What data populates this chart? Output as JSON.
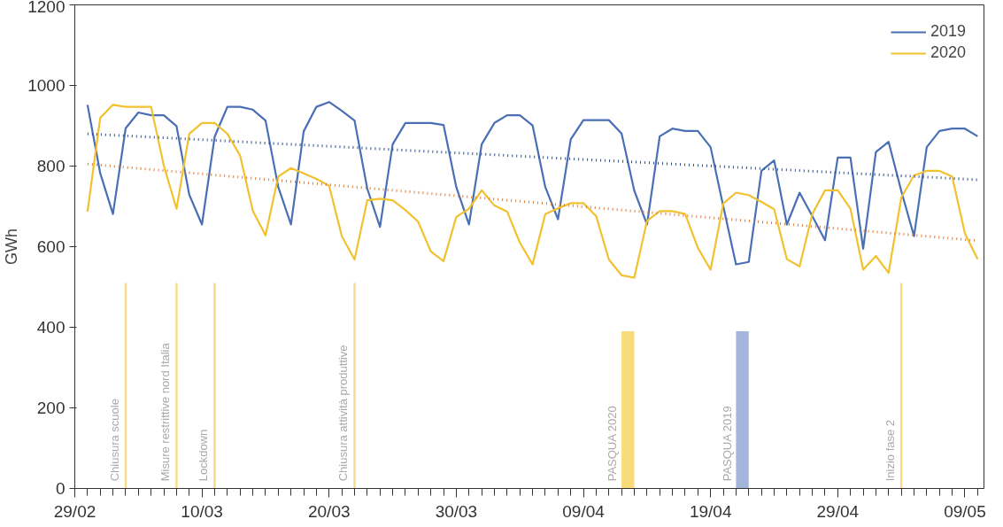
{
  "chart_data": {
    "type": "line",
    "ylabel": "GWh",
    "x": [
      "2020-03-01",
      "2020-03-02",
      "2020-03-03",
      "2020-03-04",
      "2020-03-05",
      "2020-03-06",
      "2020-03-07",
      "2020-03-08",
      "2020-03-09",
      "2020-03-10",
      "2020-03-11",
      "2020-03-12",
      "2020-03-13",
      "2020-03-14",
      "2020-03-15",
      "2020-03-16",
      "2020-03-17",
      "2020-03-18",
      "2020-03-19",
      "2020-03-20",
      "2020-03-21",
      "2020-03-22",
      "2020-03-23",
      "2020-03-24",
      "2020-03-25",
      "2020-03-26",
      "2020-03-27",
      "2020-03-28",
      "2020-03-29",
      "2020-03-30",
      "2020-03-31",
      "2020-04-01",
      "2020-04-02",
      "2020-04-03",
      "2020-04-04",
      "2020-04-05",
      "2020-04-06",
      "2020-04-07",
      "2020-04-08",
      "2020-04-09",
      "2020-04-10",
      "2020-04-11",
      "2020-04-12",
      "2020-04-13",
      "2020-04-14",
      "2020-04-15",
      "2020-04-16",
      "2020-04-17",
      "2020-04-18",
      "2020-04-19",
      "2020-04-20",
      "2020-04-21",
      "2020-04-22",
      "2020-04-23",
      "2020-04-24",
      "2020-04-25",
      "2020-04-26",
      "2020-04-27",
      "2020-04-28",
      "2020-04-29",
      "2020-04-30",
      "2020-05-01",
      "2020-05-02",
      "2020-05-03",
      "2020-05-04",
      "2020-05-05",
      "2020-05-06",
      "2020-05-07",
      "2020-05-08",
      "2020-05-09",
      "2020-05-10"
    ],
    "series": [
      {
        "name": "2019",
        "color": "#4a6fb5",
        "values": [
          952,
          782,
          681,
          894,
          933,
          926,
          926,
          899,
          729,
          655,
          873,
          947,
          947,
          940,
          913,
          748,
          655,
          886,
          947,
          959,
          937,
          913,
          744,
          649,
          854,
          907,
          907,
          907,
          902,
          748,
          655,
          854,
          907,
          926,
          926,
          901,
          748,
          668,
          866,
          914,
          914,
          914,
          881,
          739,
          655,
          874,
          893,
          887,
          887,
          847,
          700,
          556,
          562,
          788,
          814,
          655,
          734,
          676,
          616,
          821,
          821,
          595,
          835,
          860,
          738,
          626,
          847,
          887,
          893,
          893,
          874
        ]
      },
      {
        "name": "2020",
        "color": "#f2c12e",
        "values": [
          687,
          920,
          952,
          947,
          947,
          947,
          801,
          694,
          880,
          907,
          907,
          880,
          826,
          689,
          628,
          774,
          795,
          782,
          768,
          751,
          626,
          568,
          715,
          719,
          715,
          691,
          662,
          588,
          564,
          674,
          694,
          740,
          702,
          687,
          610,
          556,
          681,
          695,
          708,
          708,
          676,
          568,
          529,
          523,
          664,
          688,
          688,
          681,
          597,
          543,
          707,
          734,
          728,
          711,
          693,
          569,
          551,
          681,
          740,
          740,
          694,
          543,
          577,
          535,
          722,
          777,
          788,
          788,
          774,
          633,
          569
        ]
      },
      {
        "type": "line",
        "color": "#2e4f8f",
        "line_style": "dotted",
        "x": [
          "2020-03-01",
          "2020-05-10"
        ],
        "values": [
          880,
          766
        ]
      },
      {
        "type": "line",
        "color": "#e07b39",
        "line_style": "dotted",
        "x": [
          "2020-03-01",
          "2020-05-10"
        ],
        "values": [
          805,
          615
        ]
      }
    ],
    "xlim": [
      "2020-02-29",
      "2020-05-10T12:00"
    ],
    "ylim": [
      0,
      1200
    ],
    "xticks": [
      {
        "value": "2020-02-29",
        "label": "29/02"
      },
      {
        "value": "2020-03-10",
        "label": "10/03"
      },
      {
        "value": "2020-03-20",
        "label": "20/03"
      },
      {
        "value": "2020-03-30",
        "label": "30/03"
      },
      {
        "value": "2020-04-09",
        "label": "09/04"
      },
      {
        "value": "2020-04-19",
        "label": "19/04"
      },
      {
        "value": "2020-04-29",
        "label": "29/04"
      },
      {
        "value": "2020-05-09",
        "label": "09/05"
      }
    ],
    "yticks": [
      0,
      200,
      400,
      600,
      800,
      1000,
      1200
    ],
    "ref_lines": [
      {
        "axis": "x",
        "value": "2020-03-04",
        "label": "Chiusura scuole",
        "color": "#f8dc8c"
      },
      {
        "axis": "x",
        "value": "2020-03-08",
        "label": "Misure restrittive nord Italia",
        "color": "#f8dc8c"
      },
      {
        "axis": "x",
        "value": "2020-03-11",
        "label": "Lockdown",
        "color": "#f8dc8c"
      },
      {
        "axis": "x",
        "value": "2020-03-22",
        "label": "Chiusura attività produttive",
        "color": "#f8dc8c"
      },
      {
        "axis": "x",
        "value": "2020-05-04",
        "label": "Inizio fase 2",
        "color": "#f8dc8c"
      }
    ],
    "bands": [
      {
        "axis": "x",
        "from": "2020-04-12",
        "to": "2020-04-13",
        "label": "PASQUA 2020",
        "color": "#fadb7a"
      },
      {
        "axis": "x",
        "from": "2020-04-21",
        "to": "2020-04-22",
        "label": "PASQUA 2019",
        "color": "#a3b5db"
      }
    ],
    "grid": false,
    "legend": "top right",
    "line_style": "solid",
    "marker": "none"
  }
}
